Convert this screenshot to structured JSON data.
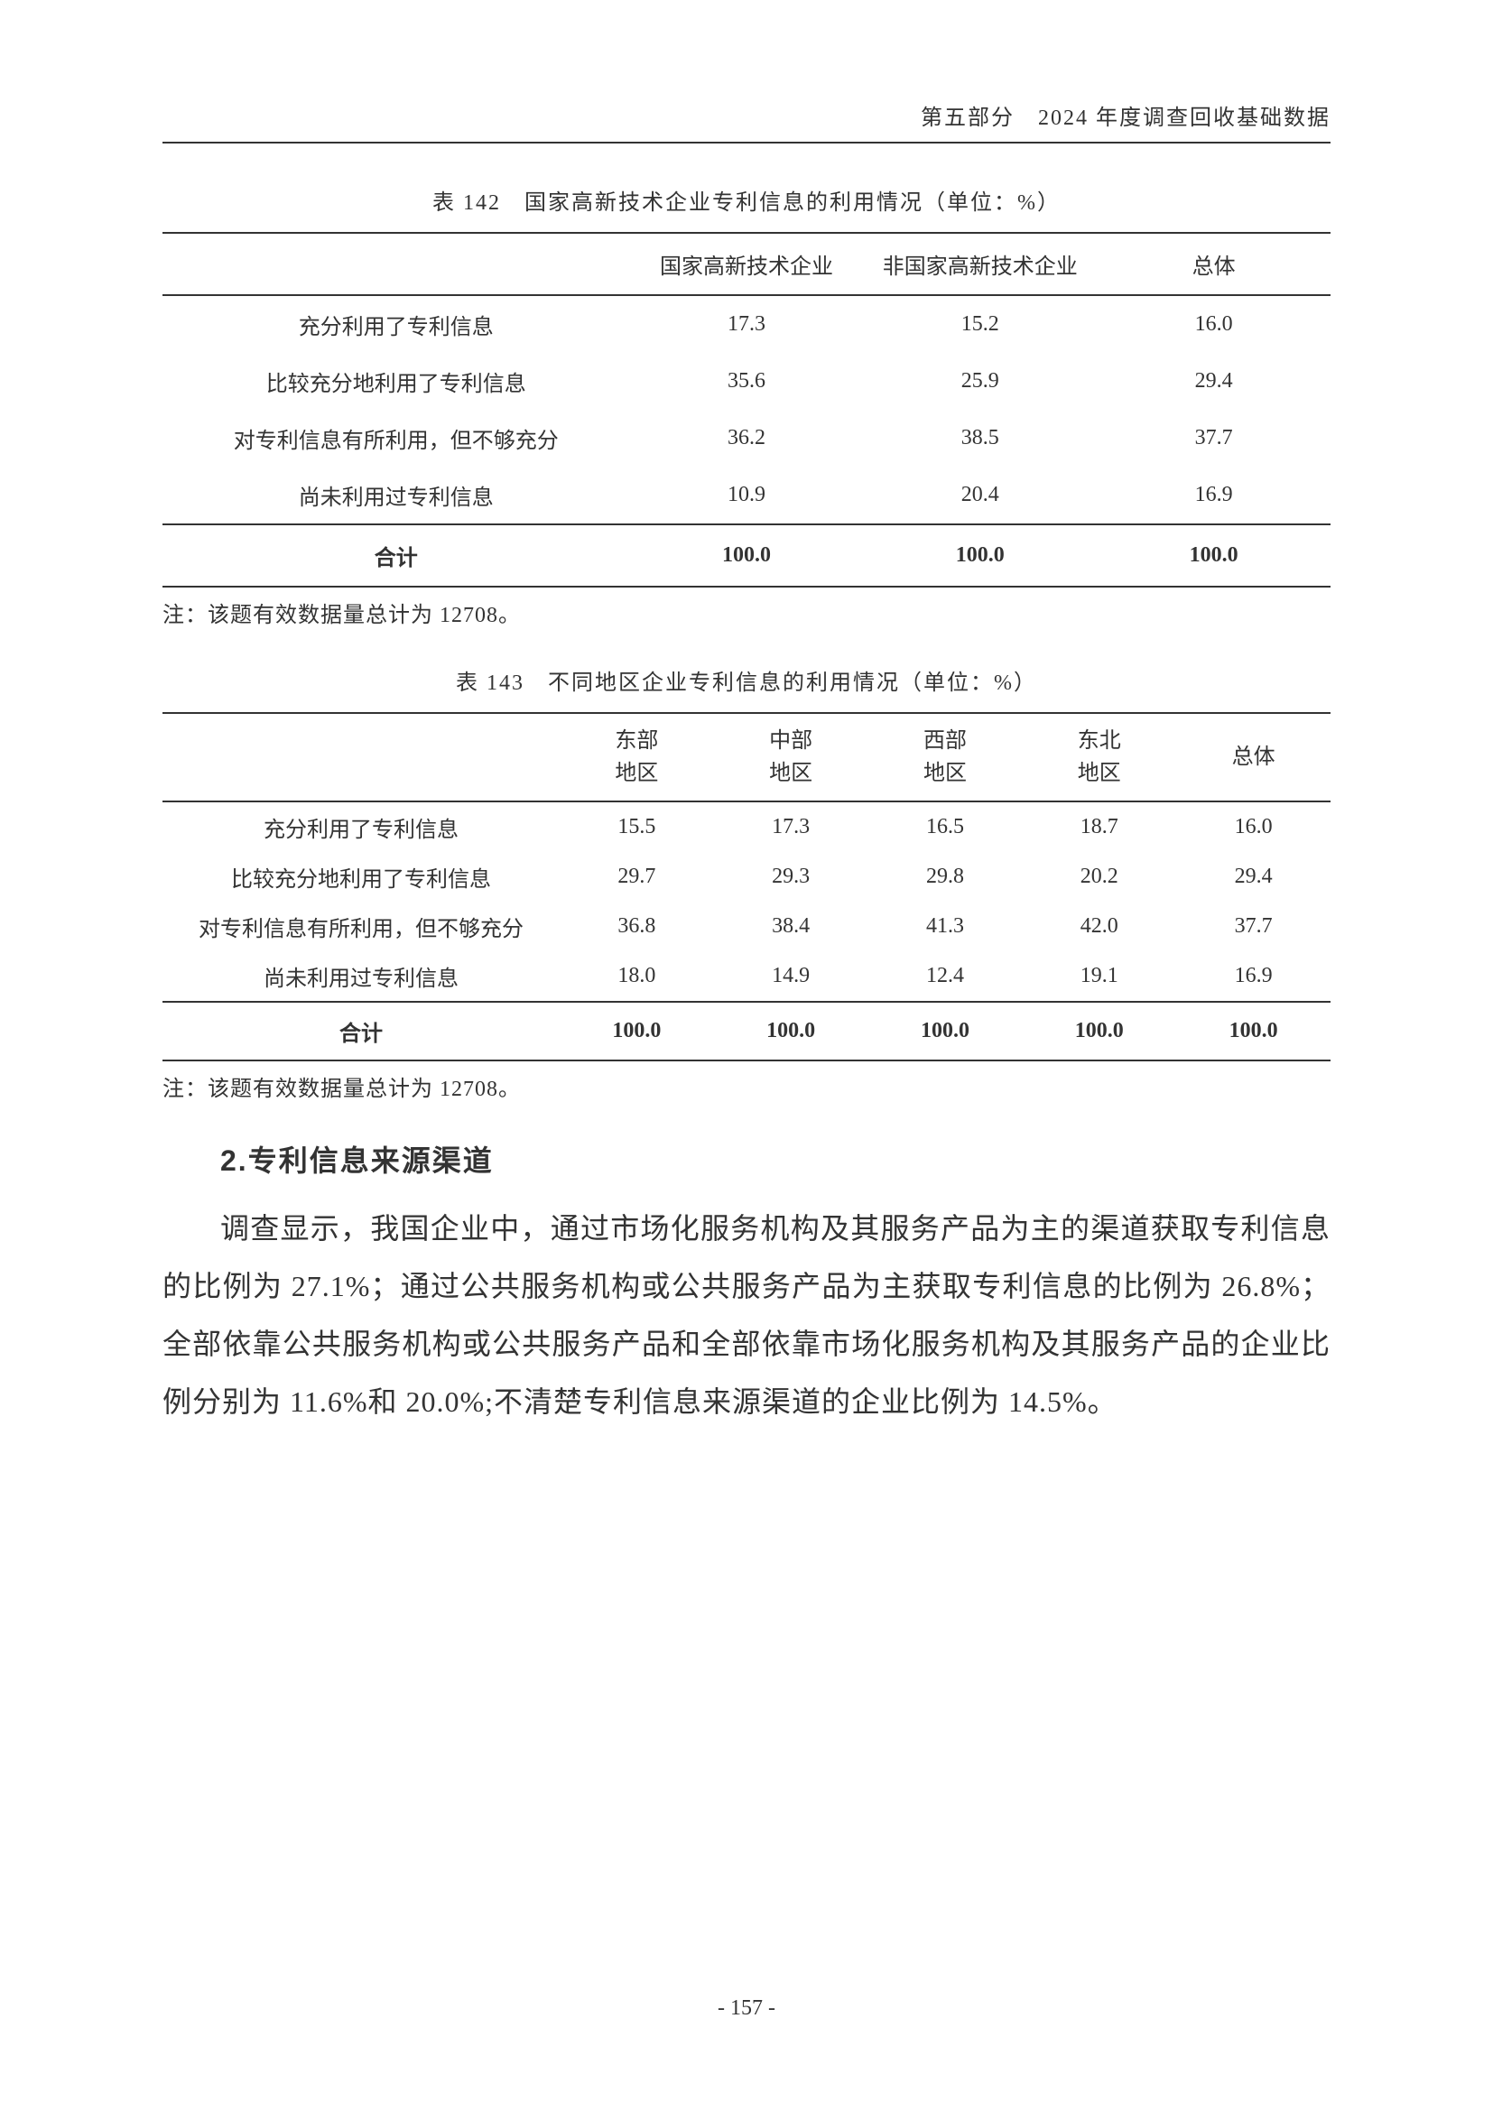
{
  "header": {
    "text": "第五部分　2024 年度调查回收基础数据"
  },
  "table142": {
    "caption": "表 142　国家高新技术企业专利信息的利用情况（单位：%）",
    "columns": [
      "",
      "国家高新技术企业",
      "非国家高新技术企业",
      "总体"
    ],
    "rows": [
      {
        "label": "充分利用了专利信息",
        "c1": "17.3",
        "c2": "15.2",
        "c3": "16.0"
      },
      {
        "label": "比较充分地利用了专利信息",
        "c1": "35.6",
        "c2": "25.9",
        "c3": "29.4"
      },
      {
        "label": "对专利信息有所利用，但不够充分",
        "c1": "36.2",
        "c2": "38.5",
        "c3": "37.7"
      },
      {
        "label": "尚未利用过专利信息",
        "c1": "10.9",
        "c2": "20.4",
        "c3": "16.9"
      }
    ],
    "sum_row": {
      "label": "合计",
      "c1": "100.0",
      "c2": "100.0",
      "c3": "100.0"
    },
    "note": "注：该题有效数据量总计为 12708。"
  },
  "table143": {
    "caption": "表 143　不同地区企业专利信息的利用情况（单位：%）",
    "columns": [
      "",
      "东部\n地区",
      "中部\n地区",
      "西部\n地区",
      "东北\n地区",
      "总体"
    ],
    "col_line1": [
      "",
      "东部",
      "中部",
      "西部",
      "东北",
      ""
    ],
    "col_line2": [
      "",
      "地区",
      "地区",
      "地区",
      "地区",
      "总体"
    ],
    "rows": [
      {
        "label": "充分利用了专利信息",
        "c1": "15.5",
        "c2": "17.3",
        "c3": "16.5",
        "c4": "18.7",
        "c5": "16.0"
      },
      {
        "label": "比较充分地利用了专利信息",
        "c1": "29.7",
        "c2": "29.3",
        "c3": "29.8",
        "c4": "20.2",
        "c5": "29.4"
      },
      {
        "label": "对专利信息有所利用，但不够充分",
        "c1": "36.8",
        "c2": "38.4",
        "c3": "41.3",
        "c4": "42.0",
        "c5": "37.7"
      },
      {
        "label": "尚未利用过专利信息",
        "c1": "18.0",
        "c2": "14.9",
        "c3": "12.4",
        "c4": "19.1",
        "c5": "16.9"
      }
    ],
    "sum_row": {
      "label": "合计",
      "c1": "100.0",
      "c2": "100.0",
      "c3": "100.0",
      "c4": "100.0",
      "c5": "100.0"
    },
    "note": "注：该题有效数据量总计为 12708。"
  },
  "section": {
    "heading": "2.专利信息来源渠道",
    "body": "调查显示，我国企业中，通过市场化服务机构及其服务产品为主的渠道获取专利信息的比例为 27.1%；通过公共服务机构或公共服务产品为主获取专利信息的比例为 26.8%；全部依靠公共服务机构或公共服务产品和全部依靠市场化服务机构及其服务产品的企业比例分别为 11.6%和 20.0%;不清楚专利信息来源渠道的企业比例为 14.5%。"
  },
  "page_number": "- 157 -",
  "colors": {
    "text": "#333333",
    "background": "#ffffff",
    "border": "#333333"
  },
  "fonts": {
    "body": "SimSun",
    "heading": "SimHei",
    "caption_fontsize": 24,
    "body_fontsize": 32,
    "table_fontsize": 24
  }
}
